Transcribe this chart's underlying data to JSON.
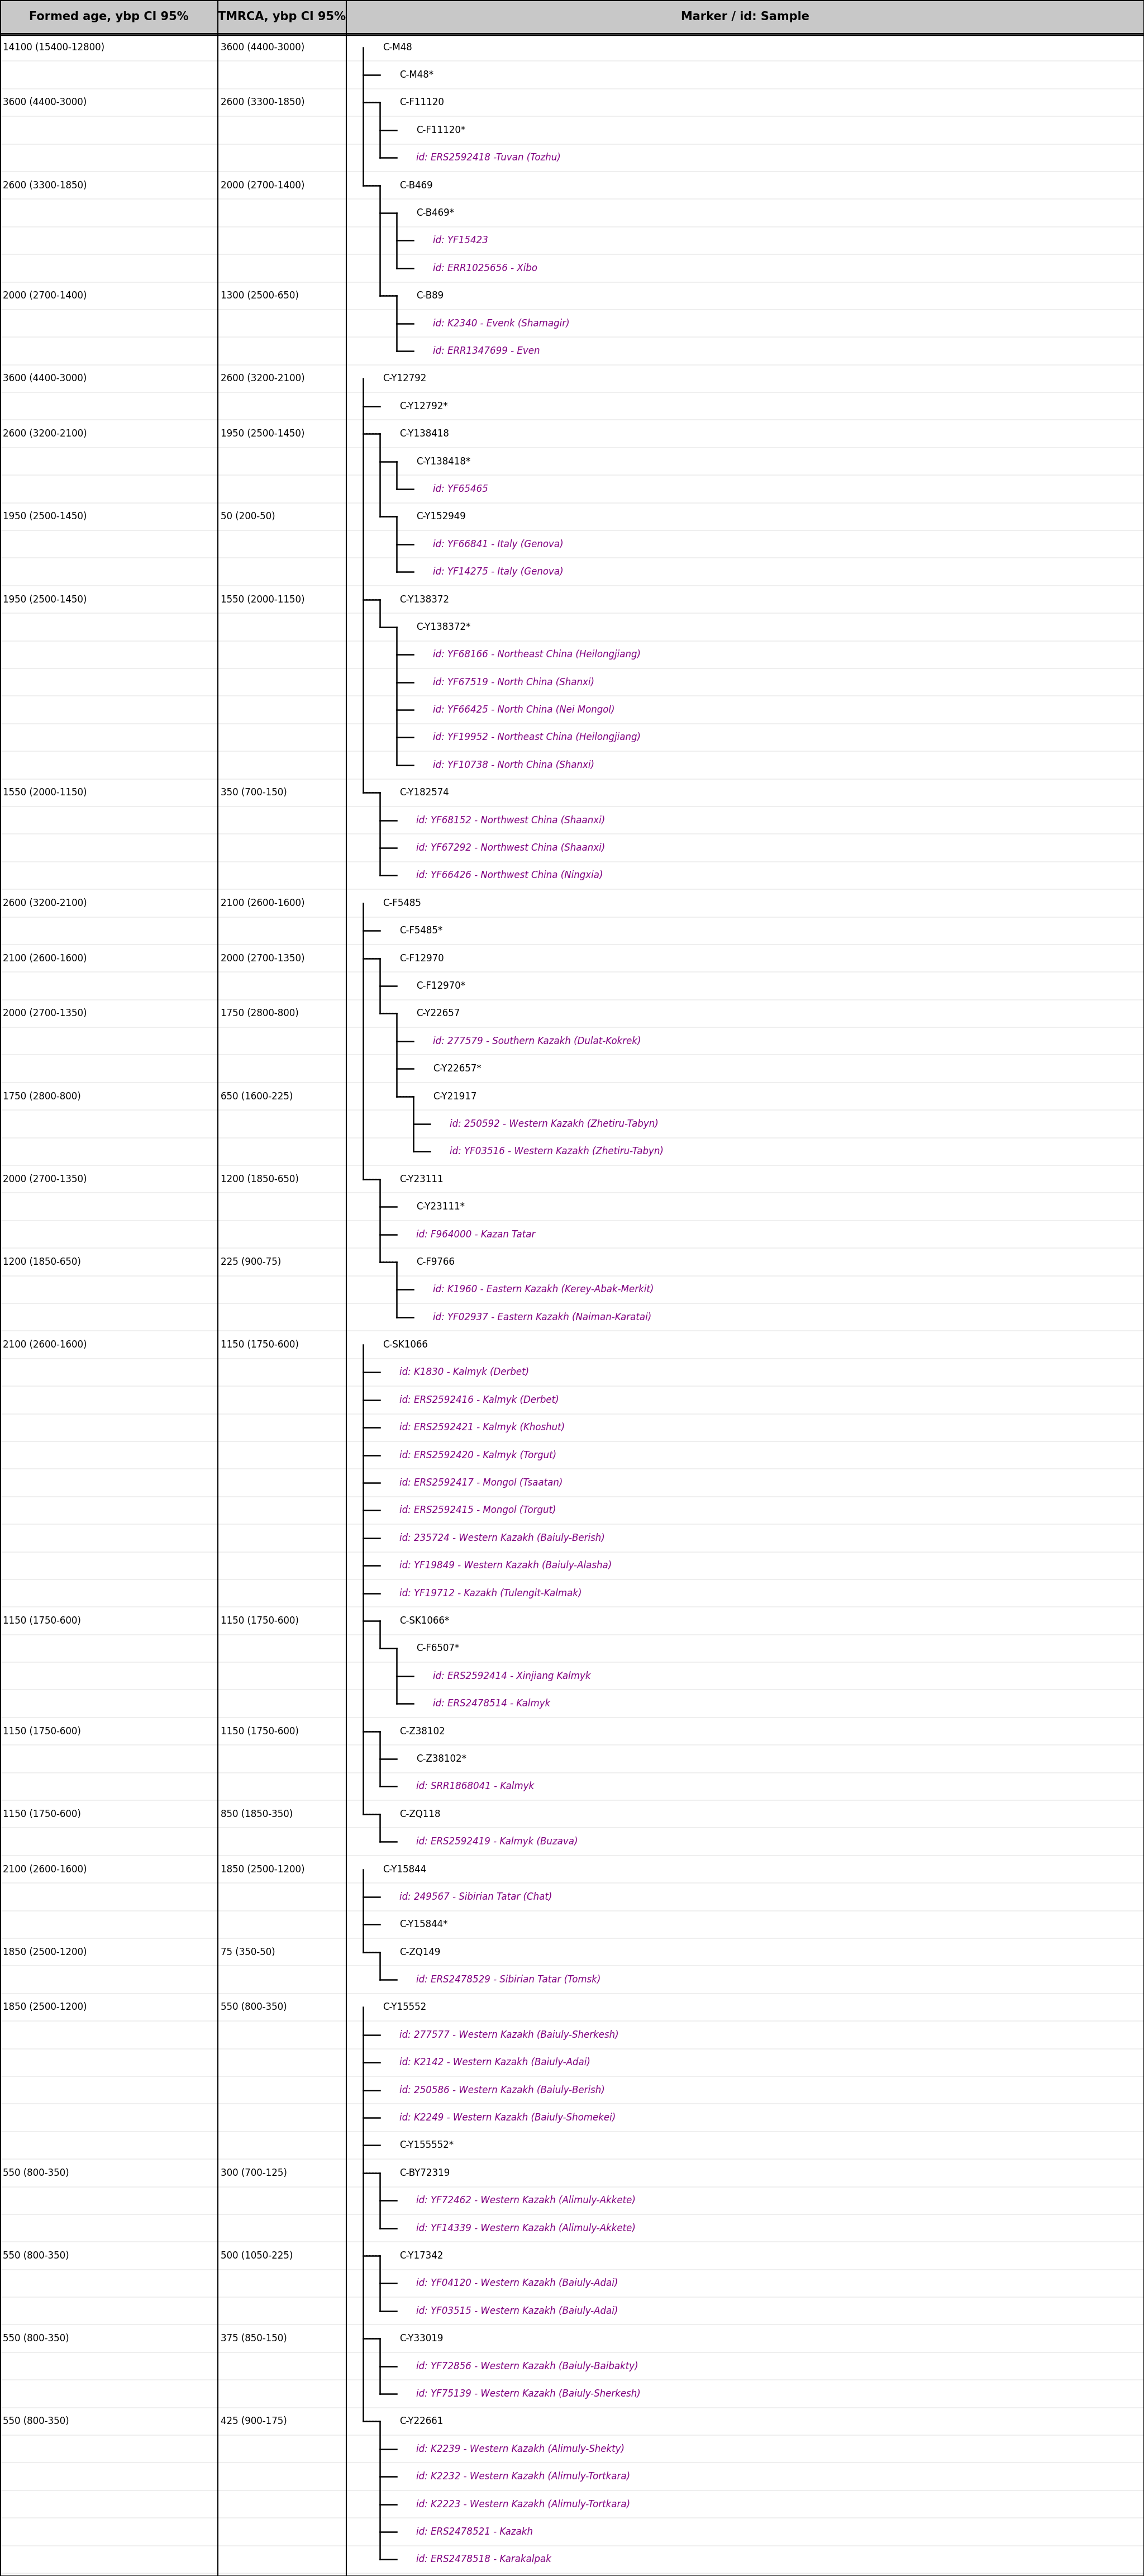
{
  "title": "Marker / id: Sample",
  "col1_header": "Formed age, ybp CI 95%",
  "col2_header": "TMRCA, ybp CI 95%",
  "col3_header": "Marker / id: Sample",
  "background_color": "#ffffff",
  "header_bg": "#c0c0c0",
  "rows": [
    {
      "formed": "14100 (15400-12800)",
      "tmrca": "3600 (4400-3000)",
      "indent": 0,
      "label": "C-M48",
      "color": "black",
      "star": false,
      "id_line": false,
      "branch_to": [
        1,
        5
      ]
    },
    {
      "formed": "",
      "tmrca": "",
      "indent": 1,
      "label": "C-M48*",
      "color": "black",
      "star": true,
      "id_line": false
    },
    {
      "formed": "3600 (4400-3000)",
      "tmrca": "2600 (3300-1850)",
      "indent": 1,
      "label": "C-F11120",
      "color": "black",
      "star": false,
      "id_line": false,
      "branch_to": [
        3,
        4
      ]
    },
    {
      "formed": "",
      "tmrca": "",
      "indent": 2,
      "label": "C-F11120*",
      "color": "black",
      "star": true,
      "id_line": false
    },
    {
      "formed": "",
      "tmrca": "",
      "indent": 2,
      "label": "id: ERS2592418 -Tuvan (Tozhu)",
      "color": "purple",
      "star": false,
      "id_line": true
    },
    {
      "formed": "2600 (3300-1850)",
      "tmrca": "2000 (2700-1400)",
      "indent": 1,
      "label": "C-B469",
      "color": "black",
      "star": false,
      "id_line": false,
      "branch_to": [
        6,
        10
      ]
    },
    {
      "formed": "",
      "tmrca": "",
      "indent": 2,
      "label": "C-B469*",
      "color": "black",
      "star": true,
      "id_line": false
    },
    {
      "formed": "",
      "tmrca": "",
      "indent": 3,
      "label": "id: YF15423",
      "color": "purple",
      "star": false,
      "id_line": true
    },
    {
      "formed": "",
      "tmrca": "",
      "indent": 3,
      "label": "id: ERR1025656 - Xibo",
      "color": "purple",
      "star": false,
      "id_line": true
    },
    {
      "formed": "2000 (2700-1400)",
      "tmrca": "1300 (2500-650)",
      "indent": 2,
      "label": "C-B89",
      "color": "black",
      "star": false,
      "id_line": false,
      "branch_to": [
        10,
        12
      ]
    },
    {
      "formed": "",
      "tmrca": "",
      "indent": 3,
      "label": "id: K2340 - Evenk (Shamagir)",
      "color": "purple",
      "star": false,
      "id_line": true
    },
    {
      "formed": "",
      "tmrca": "",
      "indent": 3,
      "label": "id: ERR1347699 - Even",
      "color": "purple",
      "star": false,
      "id_line": true
    },
    {
      "formed": "3600 (4400-3000)",
      "tmrca": "2600 (3200-2100)",
      "indent": 0,
      "label": "C-Y12792",
      "color": "black",
      "star": false,
      "id_line": false,
      "branch_to": [
        13,
        23
      ]
    },
    {
      "formed": "",
      "tmrca": "",
      "indent": 1,
      "label": "C-Y12792*",
      "color": "black",
      "star": true,
      "id_line": false
    },
    {
      "formed": "2600 (3200-2100)",
      "tmrca": "1950 (2500-1450)",
      "indent": 1,
      "label": "C-Y138418",
      "color": "black",
      "star": false,
      "id_line": false,
      "branch_to": [
        15,
        18
      ]
    },
    {
      "formed": "",
      "tmrca": "",
      "indent": 2,
      "label": "C-Y138418*",
      "color": "black",
      "star": true,
      "id_line": false
    },
    {
      "formed": "",
      "tmrca": "",
      "indent": 3,
      "label": "id: YF65465",
      "color": "purple",
      "star": false,
      "id_line": true
    },
    {
      "formed": "1950 (2500-1450)",
      "tmrca": "50 (200-50)",
      "indent": 2,
      "label": "C-Y152949",
      "color": "black",
      "star": false,
      "id_line": false,
      "branch_to": [
        18,
        20
      ]
    },
    {
      "formed": "",
      "tmrca": "",
      "indent": 3,
      "label": "id: YF66841 - Italy (Genova)",
      "color": "purple",
      "star": false,
      "id_line": true
    },
    {
      "formed": "",
      "tmrca": "",
      "indent": 3,
      "label": "id: YF14275 - Italy (Genova)",
      "color": "purple",
      "star": false,
      "id_line": true
    },
    {
      "formed": "1950 (2500-1450)",
      "tmrca": "1550 (2000-1150)",
      "indent": 1,
      "label": "C-Y138372",
      "color": "black",
      "star": false,
      "id_line": false,
      "branch_to": [
        21,
        27
      ]
    },
    {
      "formed": "",
      "tmrca": "",
      "indent": 2,
      "label": "C-Y138372*",
      "color": "black",
      "star": true,
      "id_line": false
    },
    {
      "formed": "",
      "tmrca": "",
      "indent": 3,
      "label": "id: YF68166 - Northeast China (Heilongjiang)",
      "color": "purple",
      "star": false,
      "id_line": true
    },
    {
      "formed": "",
      "tmrca": "",
      "indent": 3,
      "label": "id: YF67519 - North China (Shanxi)",
      "color": "purple",
      "star": false,
      "id_line": true
    },
    {
      "formed": "",
      "tmrca": "",
      "indent": 3,
      "label": "id: YF66425 - North China (Nei Mongol)",
      "color": "purple",
      "star": false,
      "id_line": true
    },
    {
      "formed": "",
      "tmrca": "",
      "indent": 3,
      "label": "id: YF19952 - Northeast China (Heilongjiang)",
      "color": "purple",
      "star": false,
      "id_line": true
    },
    {
      "formed": "",
      "tmrca": "",
      "indent": 3,
      "label": "id: YF10738 - North China (Shanxi)",
      "color": "purple",
      "star": false,
      "id_line": true
    },
    {
      "formed": "1550 (2000-1150)",
      "tmrca": "350 (700-150)",
      "indent": 1,
      "label": "C-Y182574",
      "color": "black",
      "star": false,
      "id_line": false,
      "branch_to": [
        28,
        31
      ]
    },
    {
      "formed": "",
      "tmrca": "",
      "indent": 2,
      "label": "id: YF68152 - Northwest China (Shaanxi)",
      "color": "purple",
      "star": false,
      "id_line": true
    },
    {
      "formed": "",
      "tmrca": "",
      "indent": 2,
      "label": "id: YF67292 - Northwest China (Shaanxi)",
      "color": "purple",
      "star": false,
      "id_line": true
    },
    {
      "formed": "",
      "tmrca": "",
      "indent": 2,
      "label": "id: YF66426 - Northwest China (Ningxia)",
      "color": "purple",
      "star": false,
      "id_line": true
    },
    {
      "formed": "2600 (3200-2100)",
      "tmrca": "2100 (2600-1600)",
      "indent": 0,
      "label": "C-F5485",
      "color": "black",
      "star": false,
      "id_line": false,
      "branch_to": [
        32,
        36
      ]
    },
    {
      "formed": "",
      "tmrca": "",
      "indent": 1,
      "label": "C-F5485*",
      "color": "black",
      "star": true,
      "id_line": false
    },
    {
      "formed": "2100 (2600-1600)",
      "tmrca": "2000 (2700-1350)",
      "indent": 1,
      "label": "C-F12970",
      "color": "black",
      "star": false,
      "id_line": false,
      "branch_to": [
        34,
        36
      ]
    },
    {
      "formed": "",
      "tmrca": "",
      "indent": 2,
      "label": "C-F12970*",
      "color": "black",
      "star": true,
      "id_line": false
    },
    {
      "formed": "2000 (2700-1350)",
      "tmrca": "1750 (2800-800)",
      "indent": 2,
      "label": "C-Y22657",
      "color": "black",
      "star": false,
      "id_line": false,
      "branch_to": [
        36,
        39
      ]
    },
    {
      "formed": "",
      "tmrca": "",
      "indent": 3,
      "label": "id: 277579 - Southern Kazakh (Dulat-Kokrek)",
      "color": "purple",
      "star": false,
      "id_line": true
    },
    {
      "formed": "",
      "tmrca": "",
      "indent": 3,
      "label": "C-Y22657*",
      "color": "black",
      "star": true,
      "id_line": false
    },
    {
      "formed": "1750 (2800-800)",
      "tmrca": "650 (1600-225)",
      "indent": 3,
      "label": "C-Y21917",
      "color": "black",
      "star": false,
      "id_line": false,
      "branch_to": [
        39,
        41
      ]
    },
    {
      "formed": "",
      "tmrca": "",
      "indent": 4,
      "label": "id: 250592 - Western Kazakh (Zhetiru-Tabyn)",
      "color": "purple",
      "star": false,
      "id_line": true
    },
    {
      "formed": "",
      "tmrca": "",
      "indent": 4,
      "label": "id: YF03516 - Western Kazakh (Zhetiru-Tabyn)",
      "color": "purple",
      "star": false,
      "id_line": true
    },
    {
      "formed": "2000 (2700-1350)",
      "tmrca": "1200 (1850-650)",
      "indent": 1,
      "label": "C-Y23111",
      "color": "black",
      "star": false,
      "id_line": false,
      "branch_to": [
        42,
        45
      ]
    },
    {
      "formed": "",
      "tmrca": "",
      "indent": 2,
      "label": "C-Y23111*",
      "color": "black",
      "star": true,
      "id_line": false
    },
    {
      "formed": "",
      "tmrca": "",
      "indent": 2,
      "label": "id: F964000 - Kazan Tatar",
      "color": "purple",
      "star": false,
      "id_line": true
    },
    {
      "formed": "1200 (1850-650)",
      "tmrca": "225 (900-75)",
      "indent": 2,
      "label": "C-F9766",
      "color": "black",
      "star": false,
      "id_line": false,
      "branch_to": [
        45,
        47
      ]
    },
    {
      "formed": "",
      "tmrca": "",
      "indent": 3,
      "label": "id: K1960 - Eastern Kazakh (Kerey-Abak-Merkit)",
      "color": "purple",
      "star": false,
      "id_line": true
    },
    {
      "formed": "",
      "tmrca": "",
      "indent": 3,
      "label": "id: YF02937 - Eastern Kazakh (Naiman-Karatai)",
      "color": "purple",
      "star": false,
      "id_line": true
    },
    {
      "formed": "2100 (2600-1600)",
      "tmrca": "1150 (1750-600)",
      "indent": 0,
      "label": "C-SK1066",
      "color": "black",
      "star": false,
      "id_line": false,
      "branch_to": [
        48,
        60
      ]
    },
    {
      "formed": "",
      "tmrca": "",
      "indent": 1,
      "label": "id: K1830 - Kalmyk (Derbet)",
      "color": "purple",
      "star": false,
      "id_line": true
    },
    {
      "formed": "",
      "tmrca": "",
      "indent": 1,
      "label": "id: ERS2592416 - Kalmyk (Derbet)",
      "color": "purple",
      "star": false,
      "id_line": true
    },
    {
      "formed": "",
      "tmrca": "",
      "indent": 1,
      "label": "id: ERS2592421 - Kalmyk (Khoshut)",
      "color": "purple",
      "star": false,
      "id_line": true
    },
    {
      "formed": "",
      "tmrca": "",
      "indent": 1,
      "label": "id: ERS2592420 - Kalmyk (Torgut)",
      "color": "purple",
      "star": false,
      "id_line": true
    },
    {
      "formed": "",
      "tmrca": "",
      "indent": 1,
      "label": "id: ERS2592417 - Mongol (Tsaatan)",
      "color": "purple",
      "star": false,
      "id_line": true
    },
    {
      "formed": "",
      "tmrca": "",
      "indent": 1,
      "label": "id: ERS2592415 - Mongol (Torgut)",
      "color": "purple",
      "star": false,
      "id_line": true
    },
    {
      "formed": "",
      "tmrca": "",
      "indent": 1,
      "label": "id: 235724 - Western Kazakh (Baiuly-Berish)",
      "color": "purple",
      "star": false,
      "id_line": true
    },
    {
      "formed": "",
      "tmrca": "",
      "indent": 1,
      "label": "id: YF19849 - Western Kazakh (Baiuly-Alasha)",
      "color": "purple",
      "star": false,
      "id_line": true
    },
    {
      "formed": "",
      "tmrca": "",
      "indent": 1,
      "label": "id: YF19712 - Kazakh (Tulengit-Kalmak)",
      "color": "purple",
      "star": false,
      "id_line": true
    },
    {
      "formed": "1150 (1750-600)",
      "tmrca": "1150 (1750-600)",
      "indent": 1,
      "label": "C-SK1066*",
      "color": "black",
      "star": true,
      "id_line": false,
      "branch_to": [
        60,
        63
      ]
    },
    {
      "formed": "",
      "tmrca": "",
      "indent": 2,
      "label": "C-F6507*",
      "color": "black",
      "star": true,
      "id_line": false
    },
    {
      "formed": "",
      "tmrca": "",
      "indent": 3,
      "label": "id: ERS2592414 - Xinjiang Kalmyk",
      "color": "purple",
      "star": false,
      "id_line": true
    },
    {
      "formed": "",
      "tmrca": "",
      "indent": 3,
      "label": "id: ERS2478514 - Kalmyk",
      "color": "purple",
      "star": false,
      "id_line": true
    },
    {
      "formed": "1150 (1750-600)",
      "tmrca": "1150 (1750-600)",
      "indent": 1,
      "label": "C-Z38102",
      "color": "black",
      "star": false,
      "id_line": false,
      "branch_to": [
        64,
        66
      ]
    },
    {
      "formed": "",
      "tmrca": "",
      "indent": 2,
      "label": "C-Z38102*",
      "color": "black",
      "star": true,
      "id_line": false
    },
    {
      "formed": "",
      "tmrca": "",
      "indent": 2,
      "label": "id: SRR1868041 - Kalmyk",
      "color": "purple",
      "star": false,
      "id_line": true
    },
    {
      "formed": "1150 (1750-600)",
      "tmrca": "850 (1850-350)",
      "indent": 1,
      "label": "C-ZQ118",
      "color": "black",
      "star": false,
      "id_line": false,
      "branch_to": [
        67,
        69
      ]
    },
    {
      "formed": "",
      "tmrca": "",
      "indent": 2,
      "label": "id: ERS2592419 - Kalmyk (Buzava)",
      "color": "purple",
      "star": false,
      "id_line": true
    },
    {
      "formed": "2100 (2600-1600)",
      "tmrca": "1850 (2500-1200)",
      "indent": 0,
      "label": "C-Y15844",
      "color": "black",
      "star": false,
      "id_line": false,
      "branch_to": [
        69,
        71
      ]
    },
    {
      "formed": "",
      "tmrca": "",
      "indent": 1,
      "label": "id: 249567 - Sibirian Tatar (Chat)",
      "color": "purple",
      "star": false,
      "id_line": true
    },
    {
      "formed": "",
      "tmrca": "",
      "indent": 1,
      "label": "C-Y15844*",
      "color": "black",
      "star": true,
      "id_line": false
    },
    {
      "formed": "1850 (2500-1200)",
      "tmrca": "75 (350-50)",
      "indent": 1,
      "label": "C-ZQ149",
      "color": "black",
      "star": false,
      "id_line": false,
      "branch_to": [
        72,
        73
      ]
    },
    {
      "formed": "",
      "tmrca": "",
      "indent": 2,
      "label": "id: ERS2478529 - Sibirian Tatar (Tomsk)",
      "color": "purple",
      "star": false,
      "id_line": true
    },
    {
      "formed": "1850 (2500-1200)",
      "tmrca": "550 (800-350)",
      "indent": 0,
      "label": "C-Y15552",
      "color": "black",
      "star": false,
      "id_line": false,
      "branch_to": [
        74,
        82
      ]
    },
    {
      "formed": "",
      "tmrca": "",
      "indent": 1,
      "label": "id: 277577 - Western Kazakh (Baiuly-Sherkesh)",
      "color": "purple",
      "star": false,
      "id_line": true
    },
    {
      "formed": "",
      "tmrca": "",
      "indent": 1,
      "label": "id: K2142 - Western Kazakh (Baiuly-Adai)",
      "color": "purple",
      "star": false,
      "id_line": true
    },
    {
      "formed": "",
      "tmrca": "",
      "indent": 1,
      "label": "id: 250586 - Western Kazakh (Baiuly-Berish)",
      "color": "purple",
      "star": false,
      "id_line": true
    },
    {
      "formed": "",
      "tmrca": "",
      "indent": 1,
      "label": "id: K2249 - Western Kazakh (Baiuly-Shomekei)",
      "color": "purple",
      "star": false,
      "id_line": true
    },
    {
      "formed": "",
      "tmrca": "",
      "indent": 1,
      "label": "C-Y155552*",
      "color": "black",
      "star": true,
      "id_line": false
    },
    {
      "formed": "550 (800-350)",
      "tmrca": "300 (700-125)",
      "indent": 1,
      "label": "C-BY72319",
      "color": "black",
      "star": false,
      "id_line": false,
      "branch_to": [
        80,
        82
      ]
    },
    {
      "formed": "",
      "tmrca": "",
      "indent": 2,
      "label": "id: YF72462 - Western Kazakh (Alimuly-Akkete)",
      "color": "purple",
      "star": false,
      "id_line": true
    },
    {
      "formed": "",
      "tmrca": "",
      "indent": 2,
      "label": "id: YF14339 - Western Kazakh (Alimuly-Akkete)",
      "color": "purple",
      "star": false,
      "id_line": true
    },
    {
      "formed": "550 (800-350)",
      "tmrca": "500 (1050-225)",
      "indent": 1,
      "label": "C-Y17342",
      "color": "black",
      "star": false,
      "id_line": false,
      "branch_to": [
        83,
        85
      ]
    },
    {
      "formed": "",
      "tmrca": "",
      "indent": 2,
      "label": "id: YF04120 - Western Kazakh (Baiuly-Adai)",
      "color": "purple",
      "star": false,
      "id_line": true
    },
    {
      "formed": "",
      "tmrca": "",
      "indent": 2,
      "label": "id: YF03515 - Western Kazakh (Baiuly-Adai)",
      "color": "purple",
      "star": false,
      "id_line": true
    },
    {
      "formed": "550 (800-350)",
      "tmrca": "375 (850-150)",
      "indent": 1,
      "label": "C-Y33019",
      "color": "black",
      "star": false,
      "id_line": false,
      "branch_to": [
        86,
        88
      ]
    },
    {
      "formed": "",
      "tmrca": "",
      "indent": 2,
      "label": "id: YF72856 - Western Kazakh (Baiuly-Baibakty)",
      "color": "purple",
      "star": false,
      "id_line": true
    },
    {
      "formed": "",
      "tmrca": "",
      "indent": 2,
      "label": "id: YF75139 - Western Kazakh (Baiuly-Sherkesh)",
      "color": "purple",
      "star": false,
      "id_line": true
    },
    {
      "formed": "550 (800-350)",
      "tmrca": "425 (900-175)",
      "indent": 1,
      "label": "C-Y22661",
      "color": "black",
      "star": false,
      "id_line": false,
      "branch_to": [
        89,
        93
      ]
    },
    {
      "formed": "",
      "tmrca": "",
      "indent": 2,
      "label": "id: K2239 - Western Kazakh (Alimuly-Shekty)",
      "color": "purple",
      "star": false,
      "id_line": true
    },
    {
      "formed": "",
      "tmrca": "",
      "indent": 2,
      "label": "id: K2232 - Western Kazakh (Alimuly-Tortkara)",
      "color": "purple",
      "star": false,
      "id_line": true
    },
    {
      "formed": "",
      "tmrca": "",
      "indent": 2,
      "label": "id: K2223 - Western Kazakh (Alimuly-Tortkara)",
      "color": "purple",
      "star": false,
      "id_line": true
    },
    {
      "formed": "",
      "tmrca": "",
      "indent": 2,
      "label": "id: ERS2478521 - Kazakh",
      "color": "purple",
      "star": false,
      "id_line": true
    },
    {
      "formed": "",
      "tmrca": "",
      "indent": 2,
      "label": "id: ERS2478518 - Karakalpak",
      "color": "purple",
      "star": false,
      "id_line": true
    }
  ]
}
